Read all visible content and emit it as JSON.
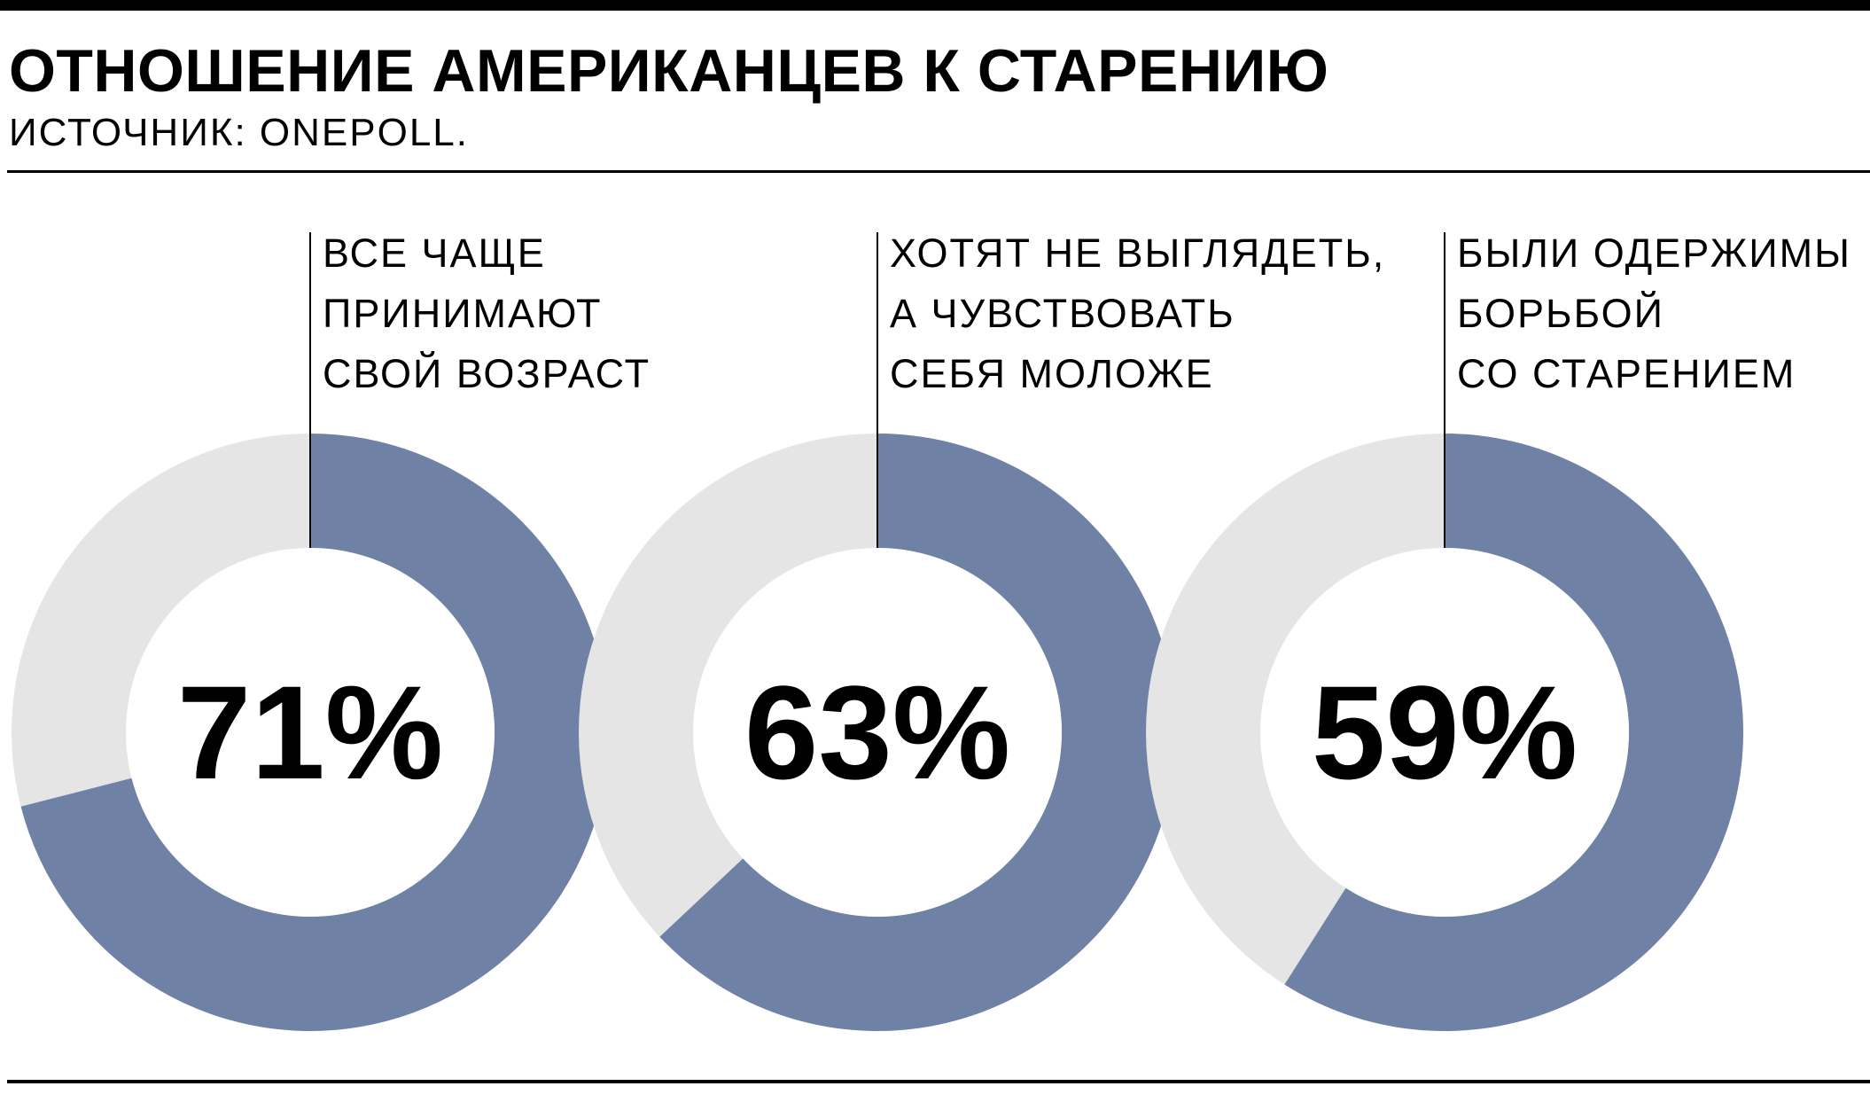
{
  "header": {
    "title": "ОТНОШЕНИЕ АМЕРИКАНЦЕВ К СТАРЕНИЮ",
    "source": "ИСТОЧНИК: ONEPOLL."
  },
  "colors": {
    "filled": "#7081a6",
    "remainder": "#e5e5e5",
    "text": "#000000"
  },
  "chart_data": [
    {
      "type": "pie",
      "title": "",
      "label": "ВСЕ ЧАЩЕ\nПРИНИМАЮТ\nСВОЙ ВОЗРАСТ",
      "value": 71,
      "value_label": "71%"
    },
    {
      "type": "pie",
      "title": "",
      "label": "ХОТЯТ НЕ ВЫГЛЯДЕТЬ,\nА ЧУВСТВОВАТЬ\nСЕБЯ МОЛОЖЕ",
      "value": 63,
      "value_label": "63%"
    },
    {
      "type": "pie",
      "title": "",
      "label": "БЫЛИ ОДЕРЖИМЫ\nБОРЬБОЙ\nСО СТАРЕНИЕМ",
      "value": 59,
      "value_label": "59%"
    }
  ]
}
